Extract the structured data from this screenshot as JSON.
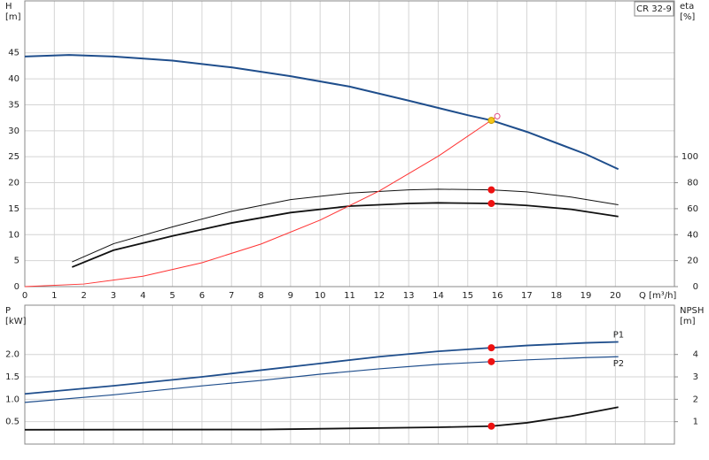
{
  "chart_data": [
    {
      "type": "line",
      "title": "CR 32-9",
      "ylabel": [
        "H",
        "[m]"
      ],
      "y2label": [
        "eta",
        "[%]"
      ],
      "xlabel": "Q [m³/h]",
      "xlim": [
        0,
        22
      ],
      "xticks": [
        0,
        1,
        2,
        3,
        4,
        5,
        6,
        7,
        8,
        9,
        10,
        11,
        12,
        13,
        14,
        15,
        16,
        17,
        18,
        19,
        20
      ],
      "xtick_labels": true,
      "ylim": [
        0,
        55
      ],
      "yticks": [
        0,
        5,
        10,
        15,
        20,
        25,
        30,
        35,
        40,
        45
      ],
      "y2lim": [
        0,
        220
      ],
      "y2ticks": [
        0,
        20,
        40,
        60,
        80,
        100
      ],
      "grid": true,
      "series": [
        {
          "color": "#1f4e8c",
          "width": 2,
          "x": [
            0,
            1.5,
            3,
            5,
            7,
            9,
            11,
            13,
            15,
            15.8,
            17,
            19,
            20.1
          ],
          "values": [
            44.3,
            44.6,
            44.3,
            43.5,
            42.2,
            40.5,
            38.5,
            35.8,
            33,
            32,
            29.8,
            25.5,
            22.6
          ]
        },
        {
          "color": "#111111",
          "width": 1,
          "axis": "y2",
          "x": [
            1.6,
            3,
            5,
            7,
            9,
            11,
            13,
            14,
            15.8,
            17,
            18.5,
            20.1
          ],
          "values": [
            19,
            33,
            46,
            58,
            67,
            72,
            74.5,
            75,
            74.5,
            73,
            69,
            63
          ]
        },
        {
          "color": "#111111",
          "width": 1.8,
          "axis": "y2",
          "x": [
            1.6,
            3,
            5,
            7,
            9,
            11,
            13,
            14,
            15.8,
            17,
            18.5,
            20.1
          ],
          "values": [
            15,
            28,
            39,
            49,
            57,
            62,
            64,
            64.5,
            64,
            62.5,
            59.5,
            54
          ]
        },
        {
          "color": "#ff3333",
          "width": 1,
          "x": [
            0,
            2,
            4,
            6,
            8,
            10,
            12,
            14,
            16
          ],
          "values": [
            0,
            0.5,
            2,
            4.6,
            8.2,
            12.8,
            18.4,
            25.1,
            32.8
          ]
        }
      ],
      "points": [
        {
          "x": 15.8,
          "y": 32,
          "color": "#f5c518"
        },
        {
          "x": 16,
          "y": 32.8,
          "color": "#e0508a",
          "style": "hollow"
        },
        {
          "x": 15.8,
          "y": 74.5,
          "axis": "y2",
          "color": "#ee1111"
        },
        {
          "x": 15.8,
          "y": 64,
          "axis": "y2",
          "color": "#ee1111"
        }
      ]
    },
    {
      "type": "line",
      "ylabel": [
        "P",
        "[kW]"
      ],
      "y2label": [
        "NPSH",
        "[m]"
      ],
      "xlim": [
        0,
        22
      ],
      "xticks": [
        0,
        1,
        2,
        3,
        4,
        5,
        6,
        7,
        8,
        9,
        10,
        11,
        12,
        13,
        14,
        15,
        16,
        17,
        18,
        19,
        20,
        21
      ],
      "xtick_labels": false,
      "ylim": [
        0,
        3.1
      ],
      "yticks": [
        0.5,
        {
          "value": 1,
          "label": "1.0"
        },
        1.5,
        {
          "value": 2,
          "label": "2.0"
        }
      ],
      "y2lim": [
        0,
        6.2
      ],
      "y2ticks": [
        1,
        2,
        3,
        4
      ],
      "grid": true,
      "series": [
        {
          "name": "P1",
          "color": "#1f4e8c",
          "width": 1.8,
          "x": [
            0,
            3,
            6,
            8,
            10,
            12,
            14,
            15.8,
            17,
            19,
            20.1
          ],
          "values": [
            1.12,
            1.3,
            1.5,
            1.65,
            1.8,
            1.95,
            2.07,
            2.15,
            2.2,
            2.26,
            2.28
          ]
        },
        {
          "name": "P2",
          "color": "#1f4e8c",
          "width": 1.2,
          "x": [
            0,
            3,
            6,
            8,
            10,
            12,
            14,
            15.8,
            17,
            19,
            20.1
          ],
          "values": [
            0.93,
            1.1,
            1.3,
            1.42,
            1.56,
            1.68,
            1.78,
            1.84,
            1.88,
            1.93,
            1.95
          ]
        },
        {
          "color": "#111111",
          "width": 1.8,
          "axis": "y2",
          "x": [
            0,
            8,
            14,
            15.8,
            17,
            18.5,
            20.1
          ],
          "values": [
            0.64,
            0.65,
            0.75,
            0.8,
            0.95,
            1.25,
            1.65
          ]
        }
      ],
      "points": [
        {
          "x": 15.8,
          "y": 2.15,
          "color": "#ee1111"
        },
        {
          "x": 15.8,
          "y": 1.84,
          "color": "#ee1111"
        },
        {
          "x": 15.8,
          "y": 0.8,
          "axis": "y2",
          "color": "#ee1111"
        }
      ]
    }
  ]
}
